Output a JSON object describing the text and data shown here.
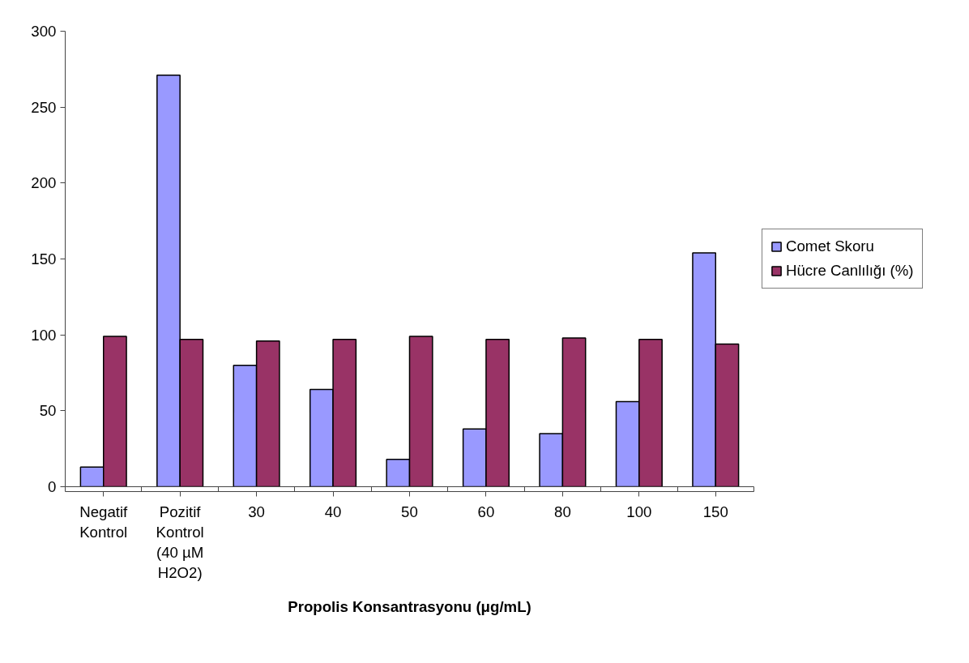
{
  "chart_data": {
    "type": "bar",
    "xlabel": "Propolis Konsantrasyonu (μg/mL)",
    "categories": [
      "Negatif Kontrol",
      "Pozitif Kontrol (40 µM H2O2)",
      "30",
      "40",
      "50",
      "60",
      "80",
      "100",
      "150"
    ],
    "series": [
      {
        "name": "Comet Skoru",
        "color": "#9999ff",
        "values": [
          13,
          271,
          80,
          64,
          18,
          38,
          35,
          56,
          154
        ]
      },
      {
        "name": "Hücre Canlılığı (%)",
        "color": "#993366",
        "values": [
          99,
          97,
          96,
          97,
          99,
          97,
          98,
          97,
          94
        ]
      }
    ],
    "ylim": [
      0,
      300
    ],
    "yticks": [
      0,
      50,
      100,
      150,
      200,
      250,
      300
    ],
    "grid": false,
    "legend": "right"
  }
}
